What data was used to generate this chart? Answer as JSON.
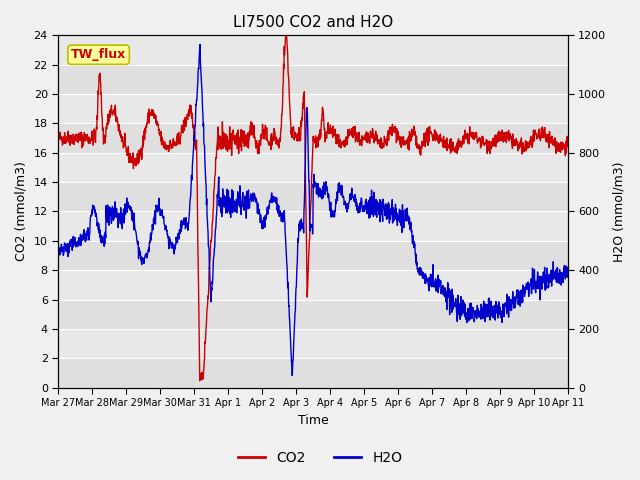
{
  "title": "LI7500 CO2 and H2O",
  "xlabel": "Time",
  "ylabel_left": "CO2 (mmol/m3)",
  "ylabel_right": "H2O (mmol/m3)",
  "xtick_labels": [
    "Mar 27",
    "Mar 28",
    "Mar 29",
    "Mar 30",
    "Mar 31",
    "Apr 1",
    "Apr 2",
    "Apr 3",
    "Apr 4",
    "Apr 5",
    "Apr 6",
    "Apr 7",
    "Apr 8",
    "Apr 9",
    "Apr 10",
    "Apr 11"
  ],
  "ylim_left": [
    0,
    24
  ],
  "ylim_right": [
    0,
    1200
  ],
  "yticks_left": [
    0,
    2,
    4,
    6,
    8,
    10,
    12,
    14,
    16,
    18,
    20,
    22,
    24
  ],
  "yticks_right": [
    0,
    200,
    400,
    600,
    800,
    1000,
    1200
  ],
  "co2_color": "#cc0000",
  "h2o_color": "#0000cc",
  "fig_bg_color": "#f0f0f0",
  "plot_bg_color": "#e8e8e8",
  "grid_color": "#ffffff",
  "legend_label_co2": "CO2",
  "legend_label_h2o": "H2O",
  "annotation_text": "TW_flux",
  "annotation_bg": "#ffff99",
  "annotation_border": "#bbbb00",
  "line_width": 1.0,
  "title_fontsize": 11,
  "axis_fontsize": 9,
  "tick_fontsize": 8,
  "legend_fontsize": 10
}
